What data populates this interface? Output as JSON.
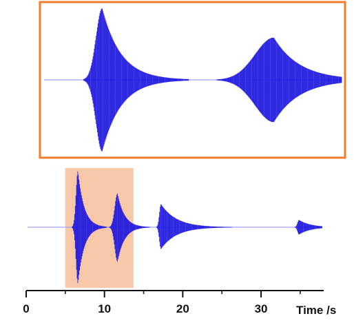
{
  "chart_data": {
    "type": "line",
    "xlabel": "Time /s",
    "xlim": [
      0,
      38
    ],
    "x_ticks": [
      0,
      10,
      20,
      30
    ],
    "grid": false,
    "colors": {
      "signal": "#1a14e0",
      "baseline": "#9da2ff",
      "zoom_frame": "#ee7d2a",
      "highlight": "#f6c8a8",
      "axis": "#111111"
    },
    "highlight_range": [
      5,
      13.7
    ],
    "series": [
      {
        "panel": "bottom",
        "bursts": [
          {
            "t0": 6.5,
            "amp_up": 0.85,
            "amp_down": 0.85,
            "rise": 0.25,
            "decay": 0.8
          },
          {
            "t0": 11.6,
            "amp_up": 0.51,
            "amp_down": 0.52,
            "rise": 0.35,
            "decay": 0.9
          },
          {
            "t0": 17.2,
            "amp_up": 0.35,
            "amp_down": 0.33,
            "rise": 0.2,
            "decay": 2.0
          },
          {
            "t0": 35.0,
            "amp_up": 0.11,
            "amp_down": 0.11,
            "rise": 0.2,
            "decay": 1.5
          }
        ]
      },
      {
        "panel": "zoom",
        "xlim": [
          5,
          13.7
        ],
        "bursts": [
          {
            "t0": 6.7,
            "amp_up": 1.0,
            "amp_down": 1.0,
            "rise": 0.18,
            "decay": 0.55
          },
          {
            "t0": 11.72,
            "amp_up": 0.59,
            "amp_down": 0.59,
            "rise": 0.55,
            "decay": 0.75
          }
        ]
      }
    ]
  }
}
